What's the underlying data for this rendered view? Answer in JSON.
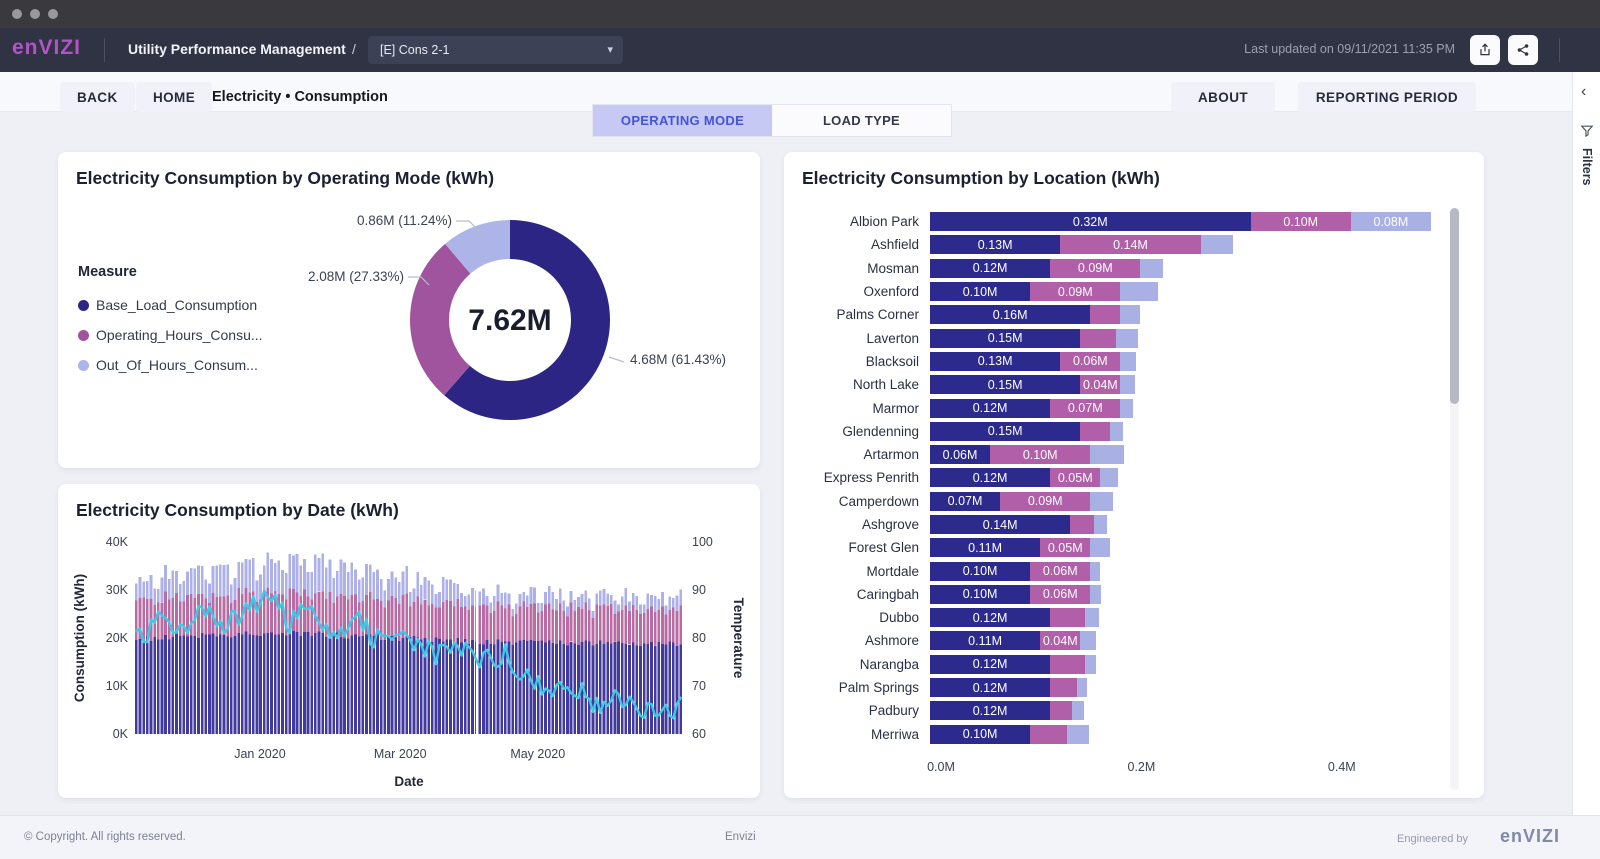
{
  "header": {
    "logo_text": "enVIZI",
    "app_title": "Utility Performance Management",
    "breadcrumb_separator": "/",
    "report_dropdown_value": "[E] Cons 2-1",
    "last_updated": "Last updated on 09/11/2021 11:35 PM"
  },
  "nav": {
    "back_label": "BACK",
    "home_label": "HOME",
    "breadcrumb": "Electricity • Consumption",
    "about_label": "ABOUT",
    "reporting_period_label": "REPORTING PERIOD",
    "tabs": [
      {
        "label": "OPERATING MODE",
        "active": true
      },
      {
        "label": "LOAD TYPE",
        "active": false
      }
    ]
  },
  "filters_rail": {
    "label": "Filters",
    "collapse_glyph": "‹"
  },
  "colors": {
    "brand_purple": "#b253c8",
    "donut": [
      "#2d2584",
      "#a1549e",
      "#acb4e8"
    ],
    "location_bars": [
      "#2c2a8c",
      "#b05fa8",
      "#a9b1e4"
    ],
    "date_bars": [
      "#423a9c",
      "#b96ba6",
      "#adb1e7"
    ],
    "temperature_line": "#3ec9e6"
  },
  "chart_data": [
    {
      "type": "pie",
      "title": "Electricity Consumption by Operating Mode (kWh)",
      "legend_title": "Measure",
      "center_total": "7.62M",
      "segments": [
        {
          "name": "Base_Load_Consumption",
          "value_m": 4.68,
          "pct": 61.43,
          "label": "4.68M (61.43%)"
        },
        {
          "name": "Operating_Hours_Consu...",
          "value_m": 2.08,
          "pct": 27.33,
          "label": "2.08M (27.33%)"
        },
        {
          "name": "Out_Of_Hours_Consum...",
          "value_m": 0.86,
          "pct": 11.24,
          "label": "0.86M (11.24%)"
        }
      ]
    },
    {
      "type": "stacked_bar_line",
      "title": "Electricity Consumption by Date (kWh)",
      "xlabel": "Date",
      "ylabel_left": "Consumption (kWh)",
      "ylabel_right": "Temperature",
      "y_left_ticks": [
        "40K",
        "30K",
        "20K",
        "10K",
        "0K"
      ],
      "y_right_ticks": [
        "100",
        "90",
        "80",
        "70",
        "60"
      ],
      "y_left_max_kwh": 40000,
      "y_right_range": [
        60,
        100
      ],
      "x_ticks": [
        {
          "label": "Jan 2020",
          "pos": 0.228
        },
        {
          "label": "Mar 2020",
          "pos": 0.484
        },
        {
          "label": "May 2020",
          "pos": 0.735
        }
      ],
      "series": [
        {
          "name": "Base_Load_Consumption",
          "role": "bar"
        },
        {
          "name": "Operating_Hours_Consumption",
          "role": "bar"
        },
        {
          "name": "Out_Of_Hours_Consumption",
          "role": "bar"
        },
        {
          "name": "Temperature",
          "role": "line"
        }
      ],
      "separator_pos": 0.622,
      "n_bars": 150,
      "consumption_points": [
        {
          "t": 0.0,
          "base_k": 19.5,
          "oper_k": 8.5,
          "out_k": 3.5
        },
        {
          "t": 0.06,
          "base_k": 20.3,
          "oper_k": 8.5,
          "out_k": 5.0
        },
        {
          "t": 0.12,
          "base_k": 20.5,
          "oper_k": 8.6,
          "out_k": 5.8
        },
        {
          "t": 0.2,
          "base_k": 20.8,
          "oper_k": 8.6,
          "out_k": 6.0
        },
        {
          "t": 0.28,
          "base_k": 21.0,
          "oper_k": 8.8,
          "out_k": 7.0
        },
        {
          "t": 0.34,
          "base_k": 20.8,
          "oper_k": 8.8,
          "out_k": 7.6
        },
        {
          "t": 0.4,
          "base_k": 20.3,
          "oper_k": 8.3,
          "out_k": 6.0
        },
        {
          "t": 0.48,
          "base_k": 20.0,
          "oper_k": 8.2,
          "out_k": 5.0
        },
        {
          "t": 0.56,
          "base_k": 19.6,
          "oper_k": 8.0,
          "out_k": 4.2
        },
        {
          "t": 0.62,
          "base_k": 19.2,
          "oper_k": 7.8,
          "out_k": 3.4
        },
        {
          "t": 0.7,
          "base_k": 19.0,
          "oper_k": 7.6,
          "out_k": 3.0
        },
        {
          "t": 0.8,
          "base_k": 19.0,
          "oper_k": 7.5,
          "out_k": 2.8
        },
        {
          "t": 0.9,
          "base_k": 19.0,
          "oper_k": 7.5,
          "out_k": 2.8
        },
        {
          "t": 1.0,
          "base_k": 18.9,
          "oper_k": 7.4,
          "out_k": 2.8
        }
      ],
      "temperature_points": [
        [
          0.0,
          79
        ],
        [
          0.04,
          84
        ],
        [
          0.08,
          81
        ],
        [
          0.12,
          87
        ],
        [
          0.16,
          82
        ],
        [
          0.2,
          85
        ],
        [
          0.24,
          90
        ],
        [
          0.28,
          83
        ],
        [
          0.32,
          88
        ],
        [
          0.36,
          81
        ],
        [
          0.4,
          84
        ],
        [
          0.44,
          80
        ],
        [
          0.48,
          82
        ],
        [
          0.52,
          78
        ],
        [
          0.56,
          76
        ],
        [
          0.6,
          78
        ],
        [
          0.64,
          75
        ],
        [
          0.68,
          77
        ],
        [
          0.72,
          71
        ],
        [
          0.76,
          68
        ],
        [
          0.8,
          71
        ],
        [
          0.84,
          65
        ],
        [
          0.88,
          68
        ],
        [
          0.92,
          66
        ],
        [
          0.96,
          63
        ],
        [
          1.0,
          66
        ]
      ]
    },
    {
      "type": "stacked_bar_horizontal",
      "title": "Electricity Consumption by Location (kWh)",
      "x_ticks": [
        "0.0M",
        "0.2M",
        "0.4M"
      ],
      "x_tick_interval_m": 0.2,
      "x_max_m": 0.505,
      "series_names": [
        "Base_Load_Consumption",
        "Operating_Hours_Consumption",
        "Out_Of_Hours_Consumption"
      ],
      "rows": [
        {
          "location": "Albion Park",
          "segments": [
            {
              "v": 0.32,
              "label": "0.32M"
            },
            {
              "v": 0.1,
              "label": "0.10M"
            },
            {
              "v": 0.08,
              "label": "0.08M"
            }
          ]
        },
        {
          "location": "Ashfield",
          "segments": [
            {
              "v": 0.13,
              "label": "0.13M"
            },
            {
              "v": 0.14,
              "label": "0.14M"
            },
            {
              "v": 0.032,
              "label": ""
            }
          ]
        },
        {
          "location": "Mosman",
          "segments": [
            {
              "v": 0.12,
              "label": "0.12M"
            },
            {
              "v": 0.09,
              "label": "0.09M"
            },
            {
              "v": 0.023,
              "label": ""
            }
          ]
        },
        {
          "location": "Oxenford",
          "segments": [
            {
              "v": 0.1,
              "label": "0.10M"
            },
            {
              "v": 0.09,
              "label": "0.09M"
            },
            {
              "v": 0.038,
              "label": ""
            }
          ]
        },
        {
          "location": "Palms Corner",
          "segments": [
            {
              "v": 0.16,
              "label": "0.16M"
            },
            {
              "v": 0.03,
              "label": ""
            },
            {
              "v": 0.02,
              "label": ""
            }
          ]
        },
        {
          "location": "Laverton",
          "segments": [
            {
              "v": 0.15,
              "label": "0.15M"
            },
            {
              "v": 0.036,
              "label": ""
            },
            {
              "v": 0.022,
              "label": ""
            }
          ]
        },
        {
          "location": "Blacksoil",
          "segments": [
            {
              "v": 0.13,
              "label": "0.13M"
            },
            {
              "v": 0.06,
              "label": "0.06M"
            },
            {
              "v": 0.016,
              "label": ""
            }
          ]
        },
        {
          "location": "North Lake",
          "segments": [
            {
              "v": 0.15,
              "label": "0.15M"
            },
            {
              "v": 0.04,
              "label": "0.04M"
            },
            {
              "v": 0.015,
              "label": ""
            }
          ]
        },
        {
          "location": "Marmor",
          "segments": [
            {
              "v": 0.12,
              "label": "0.12M"
            },
            {
              "v": 0.07,
              "label": "0.07M"
            },
            {
              "v": 0.013,
              "label": ""
            }
          ]
        },
        {
          "location": "Glendenning",
          "segments": [
            {
              "v": 0.15,
              "label": "0.15M"
            },
            {
              "v": 0.03,
              "label": ""
            },
            {
              "v": 0.013,
              "label": ""
            }
          ]
        },
        {
          "location": "Artarmon",
          "segments": [
            {
              "v": 0.06,
              "label": "0.06M"
            },
            {
              "v": 0.1,
              "label": "0.10M"
            },
            {
              "v": 0.034,
              "label": ""
            }
          ]
        },
        {
          "location": "Express Penrith",
          "segments": [
            {
              "v": 0.12,
              "label": "0.12M"
            },
            {
              "v": 0.05,
              "label": "0.05M"
            },
            {
              "v": 0.018,
              "label": ""
            }
          ]
        },
        {
          "location": "Camperdown",
          "segments": [
            {
              "v": 0.07,
              "label": "0.07M"
            },
            {
              "v": 0.09,
              "label": "0.09M"
            },
            {
              "v": 0.023,
              "label": ""
            }
          ]
        },
        {
          "location": "Ashgrove",
          "segments": [
            {
              "v": 0.14,
              "label": "0.14M"
            },
            {
              "v": 0.024,
              "label": ""
            },
            {
              "v": 0.013,
              "label": ""
            }
          ]
        },
        {
          "location": "Forest Glen",
          "segments": [
            {
              "v": 0.11,
              "label": "0.11M"
            },
            {
              "v": 0.05,
              "label": "0.05M"
            },
            {
              "v": 0.02,
              "label": ""
            }
          ]
        },
        {
          "location": "Mortdale",
          "segments": [
            {
              "v": 0.1,
              "label": "0.10M"
            },
            {
              "v": 0.06,
              "label": "0.06M"
            },
            {
              "v": 0.01,
              "label": ""
            }
          ]
        },
        {
          "location": "Caringbah",
          "segments": [
            {
              "v": 0.1,
              "label": "0.10M"
            },
            {
              "v": 0.06,
              "label": "0.06M"
            },
            {
              "v": 0.011,
              "label": ""
            }
          ]
        },
        {
          "location": "Dubbo",
          "segments": [
            {
              "v": 0.12,
              "label": "0.12M"
            },
            {
              "v": 0.035,
              "label": ""
            },
            {
              "v": 0.014,
              "label": ""
            }
          ]
        },
        {
          "location": "Ashmore",
          "segments": [
            {
              "v": 0.11,
              "label": "0.11M"
            },
            {
              "v": 0.04,
              "label": "0.04M"
            },
            {
              "v": 0.016,
              "label": ""
            }
          ]
        },
        {
          "location": "Narangba",
          "segments": [
            {
              "v": 0.12,
              "label": "0.12M"
            },
            {
              "v": 0.035,
              "label": ""
            },
            {
              "v": 0.011,
              "label": ""
            }
          ]
        },
        {
          "location": "Palm Springs",
          "segments": [
            {
              "v": 0.12,
              "label": "0.12M"
            },
            {
              "v": 0.027,
              "label": ""
            },
            {
              "v": 0.01,
              "label": ""
            }
          ]
        },
        {
          "location": "Padbury",
          "segments": [
            {
              "v": 0.12,
              "label": "0.12M"
            },
            {
              "v": 0.022,
              "label": ""
            },
            {
              "v": 0.012,
              "label": ""
            }
          ]
        },
        {
          "location": "Merriwa",
          "segments": [
            {
              "v": 0.1,
              "label": "0.10M"
            },
            {
              "v": 0.037,
              "label": ""
            },
            {
              "v": 0.022,
              "label": ""
            }
          ]
        }
      ]
    }
  ],
  "footer": {
    "copyright": "© Copyright. All rights reserved.",
    "center_text": "Envizi",
    "engineered_by": "Engineered by",
    "brand": "enVIZI"
  }
}
